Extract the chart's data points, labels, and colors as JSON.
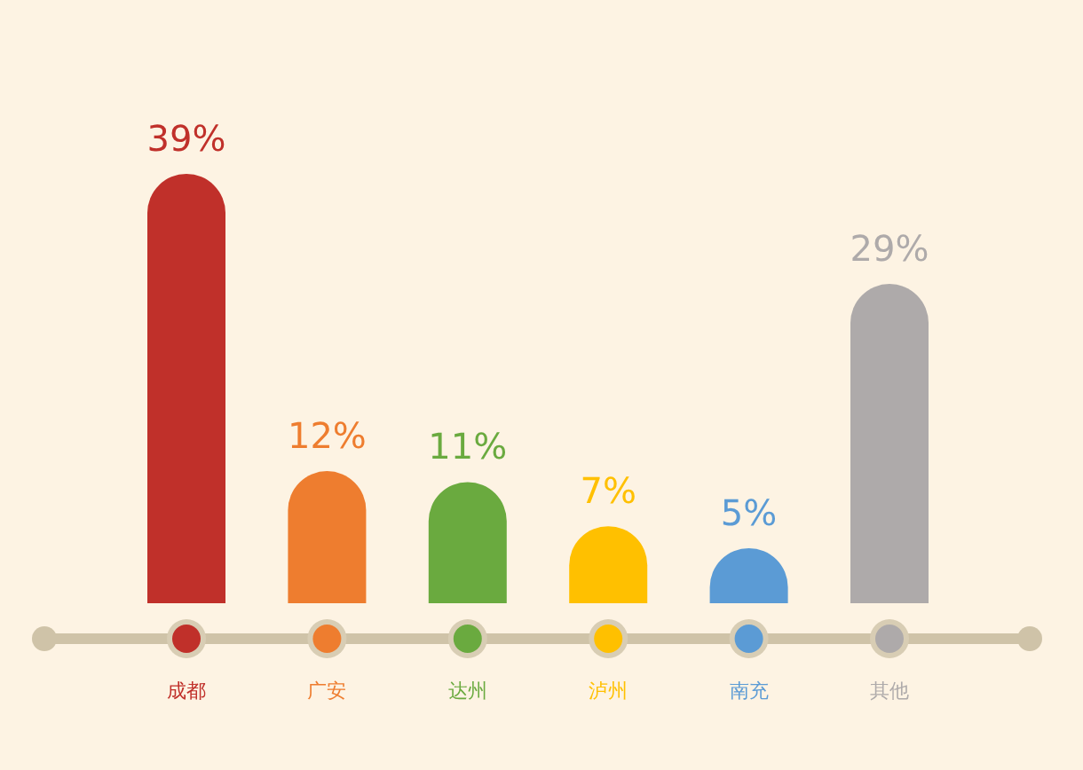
{
  "chart_data": {
    "type": "bar",
    "categories": [
      "成都",
      "广安",
      "达州",
      "泸州",
      "南充",
      "其他"
    ],
    "values": [
      39,
      12,
      11,
      7,
      5,
      29
    ],
    "value_labels": [
      "39%",
      "12%",
      "11%",
      "7%",
      "5%",
      "29%"
    ],
    "colors": [
      "#c0302a",
      "#ee7d2f",
      "#6aaa3f",
      "#ffc000",
      "#5b9bd5",
      "#aeaaaa"
    ]
  }
}
